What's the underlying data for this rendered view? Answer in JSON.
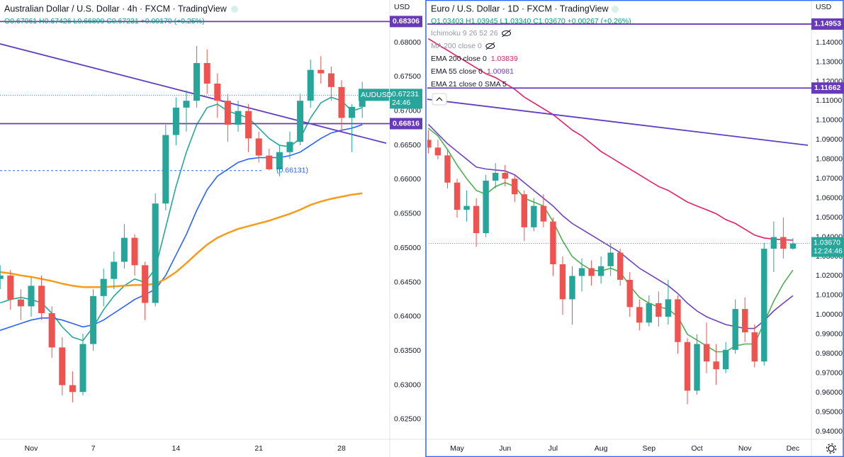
{
  "chart_data": [
    {
      "type": "candlestick",
      "title": "Australian Dollar / U.S. Dollar · 4h · FXCM · TradingView",
      "ohlc_legend": "O0.67061 H0.67426 L0.66899 C0.67231 +0.00170 (+0.25%)",
      "currency": "USD",
      "categories": [
        null,
        null,
        null,
        "Nov",
        null,
        null,
        null,
        null,
        null,
        "7",
        null,
        null,
        null,
        null,
        null,
        null,
        null,
        "14",
        null,
        null,
        null,
        null,
        null,
        null,
        null,
        "21",
        null,
        null,
        null,
        null,
        null,
        null,
        null,
        "28",
        null,
        null
      ],
      "open": [
        0.6455,
        0.646,
        0.6425,
        0.6415,
        0.6445,
        0.6405,
        0.6355,
        0.63,
        0.629,
        0.636,
        0.643,
        0.6455,
        0.648,
        0.6515,
        0.6475,
        0.642,
        0.6565,
        0.6665,
        0.6705,
        0.6715,
        0.677,
        0.674,
        0.6715,
        0.668,
        0.67,
        0.666,
        0.6635,
        0.6615,
        0.664,
        0.6655,
        0.6715,
        0.676,
        0.6755,
        0.6735,
        0.669,
        0.67061
      ],
      "high": [
        0.6475,
        0.6468,
        0.644,
        0.6458,
        0.646,
        0.6415,
        0.637,
        0.632,
        0.6375,
        0.644,
        0.647,
        0.6495,
        0.6535,
        0.652,
        0.648,
        0.658,
        0.668,
        0.672,
        0.673,
        0.6795,
        0.679,
        0.6755,
        0.6725,
        0.6715,
        0.671,
        0.667,
        0.6645,
        0.665,
        0.667,
        0.6725,
        0.6775,
        0.678,
        0.6765,
        0.6745,
        0.671,
        0.67426
      ],
      "low": [
        0.644,
        0.641,
        0.6395,
        0.64,
        0.6395,
        0.634,
        0.6285,
        0.6275,
        0.6285,
        0.635,
        0.6415,
        0.644,
        0.647,
        0.646,
        0.6395,
        0.6415,
        0.6555,
        0.665,
        0.667,
        0.6705,
        0.6725,
        0.669,
        0.6655,
        0.667,
        0.664,
        0.6625,
        0.66131,
        0.6605,
        0.663,
        0.665,
        0.6705,
        0.674,
        0.6715,
        0.667,
        0.664,
        0.66899
      ],
      "close": [
        0.646,
        0.6425,
        0.6415,
        0.6445,
        0.6405,
        0.6355,
        0.63,
        0.629,
        0.636,
        0.643,
        0.6455,
        0.648,
        0.6515,
        0.6475,
        0.642,
        0.6565,
        0.6665,
        0.6705,
        0.6715,
        0.677,
        0.674,
        0.6715,
        0.668,
        0.67,
        0.666,
        0.6635,
        0.6615,
        0.664,
        0.6655,
        0.6715,
        0.676,
        0.6755,
        0.6735,
        0.669,
        0.67061,
        0.67231
      ],
      "up_color": "#26a69a",
      "down_color": "#ef5350",
      "series": [
        {
          "color": "#26a69a",
          "values": [
            0.642,
            0.6425,
            0.6428,
            0.6425,
            0.642,
            0.6405,
            0.6385,
            0.637,
            0.6365,
            0.6385,
            0.641,
            0.643,
            0.6445,
            0.6455,
            0.645,
            0.647,
            0.653,
            0.659,
            0.664,
            0.668,
            0.6705,
            0.671,
            0.67,
            0.6695,
            0.669,
            0.6675,
            0.666,
            0.665,
            0.6648,
            0.666,
            0.669,
            0.6712,
            0.672,
            0.6715,
            0.67,
            0.6705
          ]
        },
        {
          "color": "#2962ff",
          "values": [
            0.638,
            0.6385,
            0.639,
            0.6395,
            0.6398,
            0.6398,
            0.6395,
            0.639,
            0.6385,
            0.6388,
            0.6395,
            0.6405,
            0.6415,
            0.6425,
            0.6432,
            0.644,
            0.646,
            0.649,
            0.652,
            0.6555,
            0.6585,
            0.6605,
            0.6615,
            0.6625,
            0.663,
            0.6632,
            0.6632,
            0.6632,
            0.6635,
            0.664,
            0.665,
            0.666,
            0.6668,
            0.6672,
            0.6675,
            0.668
          ]
        },
        {
          "color": "#f59c1a",
          "values": [
            0.6465,
            0.6463,
            0.646,
            0.6458,
            0.6455,
            0.6452,
            0.6448,
            0.6445,
            0.6443,
            0.6443,
            0.6443,
            0.6444,
            0.6445,
            0.6446,
            0.6446,
            0.6448,
            0.6455,
            0.6465,
            0.6478,
            0.6492,
            0.6505,
            0.6515,
            0.6522,
            0.6528,
            0.6532,
            0.6536,
            0.654,
            0.6545,
            0.655,
            0.6556,
            0.6563,
            0.6568,
            0.6572,
            0.6575,
            0.6578,
            0.658
          ]
        }
      ],
      "ylim": [
        0.6221,
        0.6862
      ],
      "yticks": [
        {
          "value": 0.625,
          "label": "0.62500"
        },
        {
          "value": 0.63,
          "label": "0.63000"
        },
        {
          "value": 0.635,
          "label": "0.63500"
        },
        {
          "value": 0.64,
          "label": "0.64000"
        },
        {
          "value": 0.645,
          "label": "0.64500"
        },
        {
          "value": 0.65,
          "label": "0.65000"
        },
        {
          "value": 0.655,
          "label": "0.65500"
        },
        {
          "value": 0.66,
          "label": "0.66000"
        },
        {
          "value": 0.665,
          "label": "0.66500"
        },
        {
          "value": 0.67,
          "label": "0.67000"
        },
        {
          "value": 0.675,
          "label": "0.67500"
        },
        {
          "value": 0.68,
          "label": "0.68000"
        }
      ],
      "grid": false,
      "price_lines": [
        {
          "value": 0.68306,
          "color": "#673ab7"
        },
        {
          "value": 0.66816,
          "color": "#673ab7"
        }
      ],
      "trendlines": [
        {
          "start": 0.6798,
          "end": 0.6653,
          "color": "#5e3fc0"
        }
      ],
      "last_price": {
        "symbol": "AUDUSD",
        "value": 0.67231,
        "countdown": "24:46",
        "color": "#26a69a"
      },
      "low_label": {
        "value": 0.66131,
        "label": "(0.66131)"
      }
    },
    {
      "type": "candlestick",
      "title": "Euro / U.S. Dollar · 1D · FXCM · TradingView",
      "ohlc_legend": "O1.03403 H1.03945 L1.03340 C1.03670 +0.00267 (+0.26%)",
      "currency": "USD",
      "indicators": [
        {
          "name": "Ichimoku 9 26 52 26",
          "hidden": true
        },
        {
          "name": "MA 200 close 0",
          "hidden": true
        }
      ],
      "categories": [
        null,
        null,
        null,
        "May",
        null,
        null,
        null,
        null,
        "Jun",
        null,
        null,
        null,
        null,
        "Jul",
        null,
        null,
        null,
        null,
        "Aug",
        null,
        null,
        null,
        null,
        "Sep",
        null,
        null,
        null,
        null,
        "Oct",
        null,
        null,
        null,
        null,
        "Nov",
        null,
        null,
        null,
        null,
        "Dec"
      ],
      "open": [
        1.09,
        1.086,
        1.082,
        1.068,
        1.054,
        1.056,
        1.042,
        1.069,
        1.073,
        1.07,
        1.062,
        1.045,
        1.056,
        1.048,
        1.026,
        1.008,
        1.02,
        1.024,
        1.02,
        1.025,
        1.032,
        1.018,
        1.004,
        0.996,
        1.006,
        0.999,
        1.008,
        0.986,
        0.961,
        0.985,
        0.976,
        0.972,
        0.982,
        1.003,
        0.991,
        0.976,
        1.034,
        1.04,
        1.03403
      ],
      "high": [
        1.095,
        1.09,
        1.085,
        1.07,
        1.064,
        1.06,
        1.072,
        1.078,
        1.077,
        1.072,
        1.064,
        1.06,
        1.062,
        1.05,
        1.03,
        1.025,
        1.029,
        1.028,
        1.03,
        1.037,
        1.034,
        1.022,
        1.008,
        1.01,
        1.012,
        1.018,
        1.01,
        0.988,
        0.99,
        0.996,
        0.985,
        0.986,
        1.008,
        1.009,
        0.995,
        1.037,
        1.048,
        1.05,
        1.03945
      ],
      "low": [
        1.083,
        1.08,
        1.065,
        1.05,
        1.048,
        1.035,
        1.04,
        1.065,
        1.066,
        1.058,
        1.038,
        1.043,
        1.045,
        1.02,
        1.0,
        0.995,
        1.012,
        1.015,
        1.016,
        1.02,
        1.015,
        0.999,
        0.992,
        0.994,
        0.994,
        0.995,
        0.98,
        0.954,
        0.959,
        0.97,
        0.964,
        0.97,
        0.98,
        0.986,
        0.973,
        0.974,
        1.022,
        1.029,
        1.0334
      ],
      "close": [
        1.086,
        1.082,
        1.068,
        1.054,
        1.056,
        1.042,
        1.069,
        1.073,
        1.07,
        1.062,
        1.045,
        1.056,
        1.048,
        1.026,
        1.008,
        1.02,
        1.024,
        1.02,
        1.025,
        1.032,
        1.018,
        1.004,
        0.996,
        1.006,
        0.999,
        1.008,
        0.986,
        0.961,
        0.985,
        0.976,
        0.972,
        0.982,
        1.003,
        0.991,
        0.976,
        1.034,
        1.04,
        1.034,
        1.0367
      ],
      "up_color": "#26a69a",
      "down_color": "#ef5350",
      "series": [
        {
          "name": "EMA 200 close 0",
          "color": "#e91e63",
          "values": [
            1.142,
            1.139,
            1.136,
            1.133,
            1.13,
            1.127,
            1.124,
            1.122,
            1.119,
            1.116,
            1.112,
            1.109,
            1.106,
            1.103,
            1.099,
            1.095,
            1.092,
            1.088,
            1.084,
            1.081,
            1.078,
            1.075,
            1.072,
            1.069,
            1.066,
            1.064,
            1.061,
            1.058,
            1.056,
            1.054,
            1.052,
            1.049,
            1.047,
            1.044,
            1.041,
            1.0395,
            1.039,
            1.0386,
            1.03839
          ]
        },
        {
          "name": "EMA 55 close 0",
          "color": "#6f42c1",
          "values": [
            1.098,
            1.093,
            1.088,
            1.084,
            1.08,
            1.076,
            1.075,
            1.0745,
            1.074,
            1.072,
            1.068,
            1.064,
            1.06,
            1.056,
            1.051,
            1.047,
            1.044,
            1.041,
            1.038,
            1.035,
            1.032,
            1.028,
            1.024,
            1.021,
            1.018,
            1.015,
            1.011,
            1.006,
            1.002,
            0.999,
            0.997,
            0.995,
            0.994,
            0.993,
            0.993,
            0.997,
            1.002,
            1.006,
            1.00981
          ]
        },
        {
          "name": "EMA 21 close 0 SMA 5",
          "color": "#4caf50",
          "values": [
            1.096,
            1.092,
            1.085,
            1.077,
            1.07,
            1.064,
            1.062,
            1.066,
            1.068,
            1.066,
            1.06,
            1.058,
            1.056,
            1.048,
            1.038,
            1.03,
            1.026,
            1.023,
            1.0225,
            1.024,
            1.022,
            1.015,
            1.009,
            1.006,
            1.004,
            1.003,
            0.999,
            0.99,
            0.987,
            0.984,
            0.981,
            0.981,
            0.984,
            0.985,
            0.985,
            0.996,
            1.007,
            1.016,
            1.023
          ]
        }
      ],
      "ylim": [
        0.936,
        1.1619
      ],
      "yticks": [
        {
          "value": 0.94,
          "label": "0.94000"
        },
        {
          "value": 0.95,
          "label": "0.95000"
        },
        {
          "value": 0.96,
          "label": "0.96000"
        },
        {
          "value": 0.97,
          "label": "0.97000"
        },
        {
          "value": 0.98,
          "label": "0.98000"
        },
        {
          "value": 0.99,
          "label": "0.99000"
        },
        {
          "value": 1.0,
          "label": "1.00000"
        },
        {
          "value": 1.01,
          "label": "1.01000"
        },
        {
          "value": 1.02,
          "label": "1.02000"
        },
        {
          "value": 1.03,
          "label": "1.03000"
        },
        {
          "value": 1.04,
          "label": "1.04000"
        },
        {
          "value": 1.05,
          "label": "1.05000"
        },
        {
          "value": 1.06,
          "label": "1.06000"
        },
        {
          "value": 1.07,
          "label": "1.07000"
        },
        {
          "value": 1.08,
          "label": "1.08000"
        },
        {
          "value": 1.09,
          "label": "1.09000"
        },
        {
          "value": 1.1,
          "label": "1.10000"
        },
        {
          "value": 1.11,
          "label": "1.11000"
        },
        {
          "value": 1.12,
          "label": "1.12000"
        },
        {
          "value": 1.13,
          "label": "1.13000"
        },
        {
          "value": 1.14,
          "label": "1.14000"
        }
      ],
      "grid": false,
      "price_lines": [
        {
          "value": 1.14953,
          "color": "#673ab7"
        },
        {
          "value": 1.11662,
          "color": "#673ab7"
        }
      ],
      "trendlines": [
        {
          "start": 1.1109,
          "end": 1.0872,
          "color": "#5e3fc0"
        }
      ],
      "last_price": {
        "value": {
          "value": 1.0367,
          "label": "1.03670"
        },
        "countdown": "12:24:46",
        "color": "#26a69a"
      }
    }
  ]
}
